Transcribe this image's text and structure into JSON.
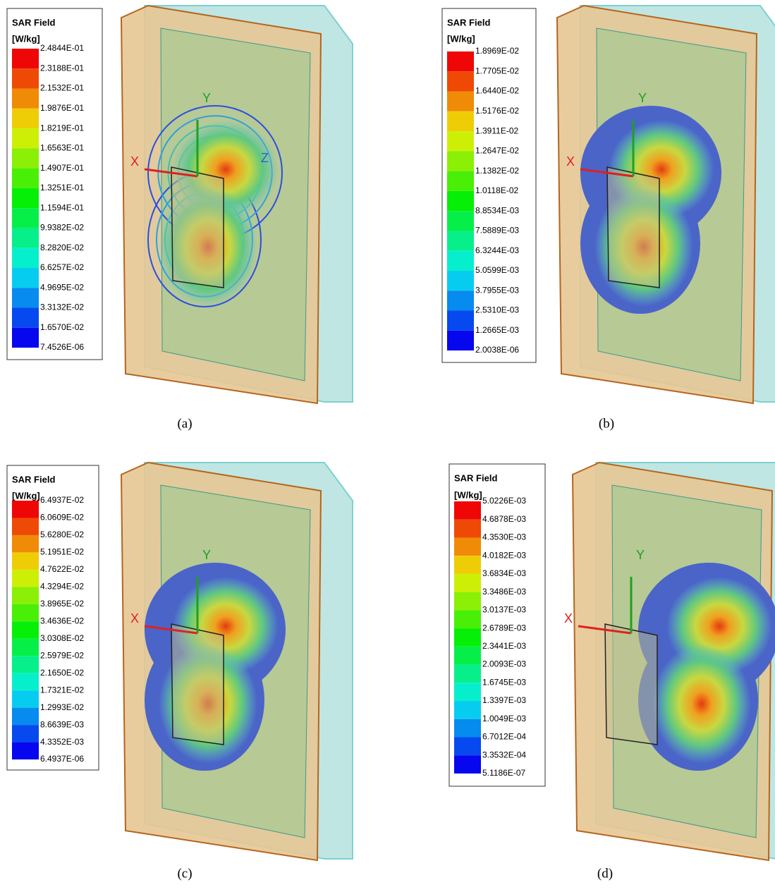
{
  "panels": [
    {
      "legend": {
        "title": "SAR Field",
        "unit": "[W/kg]",
        "labels": [
          "2.4844E-01",
          "2.3188E-01",
          "2.1532E-01",
          "1.9876E-01",
          "1.8219E-01",
          "1.6563E-01",
          "1.4907E-01",
          "1.3251E-01",
          "1.1594E-01",
          "9.9382E-02",
          "8.2820E-02",
          "6.6257E-02",
          "4.9695E-02",
          "3.3132E-02",
          "1.6570E-02",
          "7.4526E-06"
        ]
      },
      "axes": [
        "X",
        "Y",
        "Z"
      ],
      "caption": "(a)"
    },
    {
      "legend": {
        "title": "SAR Field",
        "unit": "[W/kg]",
        "labels": [
          "1.8969E-02",
          "1.7705E-02",
          "1.6440E-02",
          "1.5176E-02",
          "1.3911E-02",
          "1.2647E-02",
          "1.1382E-02",
          "1.0118E-02",
          "8.8534E-03",
          "7.5889E-03",
          "6.3244E-03",
          "5.0599E-03",
          "3.7955E-03",
          "2.5310E-03",
          "1.2665E-03",
          "2.0038E-06"
        ]
      },
      "axes": [
        "X",
        "Y"
      ],
      "caption": "(b)"
    },
    {
      "legend": {
        "title": "SAR Field",
        "unit": "[W/kg]",
        "labels": [
          "6.4937E-02",
          "6.0609E-02",
          "5.6280E-02",
          "5.1951E-02",
          "4.7622E-02",
          "4.3294E-02",
          "3.8965E-02",
          "3.4636E-02",
          "3.0308E-02",
          "2.5979E-02",
          "2.1650E-02",
          "1.7321E-02",
          "1.2993E-02",
          "8.6639E-03",
          "4.3352E-03",
          "6.4937E-06"
        ]
      },
      "axes": [
        "X",
        "Y"
      ],
      "caption": "(c)"
    },
    {
      "legend": {
        "title": "SAR Field",
        "unit": "[W/kg]",
        "labels": [
          "5.0226E-03",
          "4.6878E-03",
          "4.3530E-03",
          "4.0182E-03",
          "3.6834E-03",
          "3.3486E-03",
          "3.0137E-03",
          "2.6789E-03",
          "2.3441E-03",
          "2.0093E-03",
          "1.6745E-03",
          "1.3397E-03",
          "1.0049E-03",
          "6.7012E-04",
          "3.3532E-04",
          "5.1186E-07"
        ]
      },
      "axes": [
        "X",
        "Y"
      ],
      "caption": "(d)"
    }
  ]
}
